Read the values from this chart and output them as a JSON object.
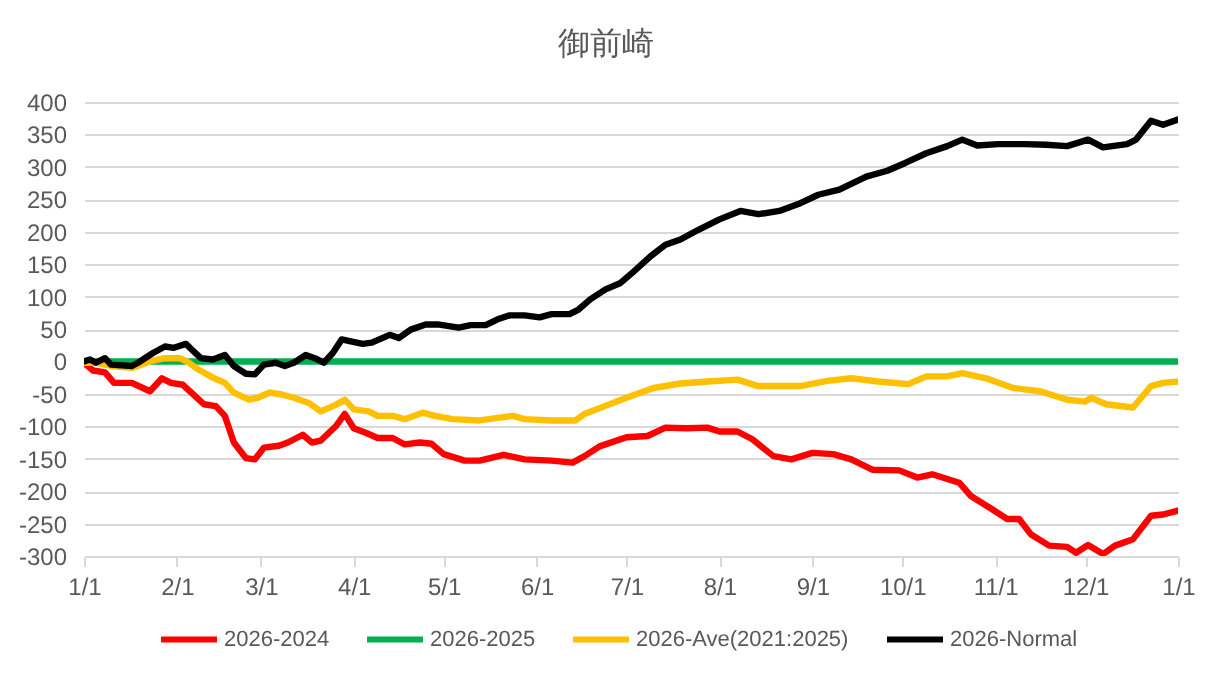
{
  "chart_data": {
    "type": "line",
    "title": "御前崎",
    "xlim": [
      "2026-01-01",
      "2027-01-01"
    ],
    "xticks": [
      {
        "value": "2026-01-01",
        "label": "1/1"
      },
      {
        "value": "2026-02-01",
        "label": "2/1"
      },
      {
        "value": "2026-03-01",
        "label": "3/1"
      },
      {
        "value": "2026-04-01",
        "label": "4/1"
      },
      {
        "value": "2026-05-01",
        "label": "5/1"
      },
      {
        "value": "2026-06-01",
        "label": "6/1"
      },
      {
        "value": "2026-07-01",
        "label": "7/1"
      },
      {
        "value": "2026-08-01",
        "label": "8/1"
      },
      {
        "value": "2026-09-01",
        "label": "9/1"
      },
      {
        "value": "2026-10-01",
        "label": "10/1"
      },
      {
        "value": "2026-11-01",
        "label": "11/1"
      },
      {
        "value": "2026-12-01",
        "label": "12/1"
      },
      {
        "value": "2027-01-01",
        "label": "1/1"
      }
    ],
    "ylim": [
      -300,
      400
    ],
    "yticks": [
      -300,
      -250,
      -200,
      -150,
      -100,
      -50,
      0,
      50,
      100,
      150,
      200,
      250,
      300,
      350,
      400
    ],
    "grid": "y",
    "legend": "bottom",
    "series": [
      {
        "name": "2026-2024",
        "color": "#ff0000",
        "x": [
          "2026-01-01",
          "2026-01-04",
          "2026-01-08",
          "2026-01-11",
          "2026-01-17",
          "2026-01-23",
          "2026-01-27",
          "2026-01-30",
          "2026-02-03",
          "2026-02-07",
          "2026-02-10",
          "2026-02-14",
          "2026-02-17",
          "2026-02-20",
          "2026-02-24",
          "2026-02-27",
          "2026-03-02",
          "2026-03-07",
          "2026-03-10",
          "2026-03-15",
          "2026-03-18",
          "2026-03-21",
          "2026-03-26",
          "2026-03-29",
          "2026-04-01",
          "2026-04-05",
          "2026-04-09",
          "2026-04-14",
          "2026-04-18",
          "2026-04-23",
          "2026-04-27",
          "2026-05-01",
          "2026-05-08",
          "2026-05-13",
          "2026-05-21",
          "2026-05-28",
          "2026-06-06",
          "2026-06-13",
          "2026-06-17",
          "2026-06-22",
          "2026-07-01",
          "2026-07-08",
          "2026-07-14",
          "2026-07-21",
          "2026-07-28",
          "2026-08-01",
          "2026-08-07",
          "2026-08-12",
          "2026-08-19",
          "2026-08-25",
          "2026-09-01",
          "2026-09-08",
          "2026-09-14",
          "2026-09-21",
          "2026-09-30",
          "2026-10-06",
          "2026-10-11",
          "2026-10-20",
          "2026-10-24",
          "2026-10-31",
          "2026-11-05",
          "2026-11-09",
          "2026-11-13",
          "2026-11-19",
          "2026-11-25",
          "2026-11-28",
          "2026-12-02",
          "2026-12-07",
          "2026-12-11",
          "2026-12-17",
          "2026-12-23",
          "2026-12-27",
          "2027-01-01"
        ],
        "values": [
          -2,
          -14,
          -17,
          -33,
          -33,
          -46,
          -26,
          -33,
          -36,
          -53,
          -66,
          -69,
          -84,
          -125,
          -149,
          -151,
          -133,
          -130,
          -125,
          -113,
          -125,
          -122,
          -100,
          -81,
          -103,
          -110,
          -118,
          -118,
          -128,
          -125,
          -127,
          -143,
          -153,
          -153,
          -144,
          -151,
          -153,
          -156,
          -146,
          -131,
          -117,
          -115,
          -102,
          -103,
          -102,
          -108,
          -108,
          -120,
          -146,
          -151,
          -141,
          -143,
          -151,
          -167,
          -168,
          -179,
          -174,
          -187,
          -208,
          -228,
          -243,
          -243,
          -267,
          -284,
          -286,
          -295,
          -283,
          -297,
          -284,
          -274,
          -238,
          -236,
          -230
        ]
      },
      {
        "name": "2026-2025",
        "color": "#00b050",
        "x": [
          "2026-01-01",
          "2026-02-01",
          "2026-03-01",
          "2026-04-01",
          "2026-05-01",
          "2026-06-01",
          "2026-07-01",
          "2026-08-01",
          "2026-09-01",
          "2026-10-01",
          "2026-11-01",
          "2026-12-01",
          "2027-01-01"
        ],
        "values": [
          0,
          0,
          0,
          0,
          0,
          0,
          0,
          0,
          0,
          0,
          0,
          0,
          0
        ]
      },
      {
        "name": "2026-Ave(2021:2025)",
        "color": "#ffc000",
        "x": [
          "2026-01-01",
          "2026-01-05",
          "2026-01-10",
          "2026-01-17",
          "2026-01-23",
          "2026-01-28",
          "2026-02-02",
          "2026-02-05",
          "2026-02-08",
          "2026-02-13",
          "2026-02-17",
          "2026-02-20",
          "2026-02-25",
          "2026-02-28",
          "2026-03-04",
          "2026-03-08",
          "2026-03-12",
          "2026-03-17",
          "2026-03-21",
          "2026-03-26",
          "2026-03-29",
          "2026-04-01",
          "2026-04-06",
          "2026-04-09",
          "2026-04-14",
          "2026-04-18",
          "2026-04-24",
          "2026-04-28",
          "2026-05-04",
          "2026-05-13",
          "2026-05-19",
          "2026-05-24",
          "2026-05-28",
          "2026-06-06",
          "2026-06-14",
          "2026-06-17",
          "2026-06-22",
          "2026-07-01",
          "2026-07-10",
          "2026-07-19",
          "2026-07-28",
          "2026-08-07",
          "2026-08-14",
          "2026-08-28",
          "2026-09-06",
          "2026-09-14",
          "2026-09-23",
          "2026-10-03",
          "2026-10-09",
          "2026-10-16",
          "2026-10-21",
          "2026-10-29",
          "2026-11-07",
          "2026-11-16",
          "2026-11-25",
          "2026-12-01",
          "2026-12-03",
          "2026-12-08",
          "2026-12-17",
          "2026-12-23",
          "2026-12-27",
          "2027-01-01"
        ],
        "values": [
          -2,
          -2,
          -7,
          -10,
          0,
          5,
          5,
          -2,
          -12,
          -25,
          -33,
          -48,
          -59,
          -56,
          -48,
          -51,
          -56,
          -64,
          -77,
          -67,
          -59,
          -74,
          -77,
          -84,
          -84,
          -89,
          -79,
          -84,
          -89,
          -91,
          -87,
          -84,
          -89,
          -91,
          -91,
          -81,
          -72,
          -56,
          -41,
          -34,
          -31,
          -28,
          -38,
          -38,
          -30,
          -26,
          -31,
          -35,
          -23,
          -23,
          -18,
          -26,
          -41,
          -46,
          -59,
          -62,
          -56,
          -66,
          -71,
          -38,
          -33,
          -31
        ]
      },
      {
        "name": "2026-Normal",
        "color": "#000000",
        "x": [
          "2026-01-01",
          "2026-01-03",
          "2026-01-05",
          "2026-01-08",
          "2026-01-10",
          "2026-01-17",
          "2026-01-19",
          "2026-01-24",
          "2026-01-28",
          "2026-01-31",
          "2026-02-04",
          "2026-02-06",
          "2026-02-09",
          "2026-02-13",
          "2026-02-17",
          "2026-02-20",
          "2026-02-24",
          "2026-02-27",
          "2026-03-02",
          "2026-03-06",
          "2026-03-09",
          "2026-03-12",
          "2026-03-16",
          "2026-03-19",
          "2026-03-22",
          "2026-03-25",
          "2026-03-28",
          "2026-03-31",
          "2026-04-04",
          "2026-04-07",
          "2026-04-13",
          "2026-04-16",
          "2026-04-20",
          "2026-04-25",
          "2026-04-29",
          "2026-05-06",
          "2026-05-10",
          "2026-05-15",
          "2026-05-19",
          "2026-05-23",
          "2026-05-28",
          "2026-06-02",
          "2026-06-06",
          "2026-06-12",
          "2026-06-15",
          "2026-06-19",
          "2026-06-24",
          "2026-06-29",
          "2026-07-03",
          "2026-07-09",
          "2026-07-14",
          "2026-07-19",
          "2026-07-25",
          "2026-08-01",
          "2026-08-08",
          "2026-08-14",
          "2026-08-21",
          "2026-08-28",
          "2026-09-03",
          "2026-09-10",
          "2026-09-19",
          "2026-09-26",
          "2026-10-02",
          "2026-10-09",
          "2026-10-16",
          "2026-10-21",
          "2026-10-26",
          "2026-11-02",
          "2026-11-11",
          "2026-11-18",
          "2026-11-25",
          "2026-12-02",
          "2026-12-07",
          "2026-12-15",
          "2026-12-18",
          "2026-12-23",
          "2026-12-27",
          "2027-01-01"
        ],
        "values": [
          0,
          3,
          -2,
          5,
          -5,
          -7,
          -2,
          13,
          23,
          21,
          27,
          18,
          5,
          3,
          10,
          -7,
          -19,
          -20,
          -5,
          -2,
          -7,
          -2,
          10,
          5,
          -2,
          13,
          34,
          31,
          27,
          29,
          41,
          36,
          49,
          57,
          57,
          52,
          56,
          56,
          65,
          71,
          71,
          68,
          73,
          73,
          80,
          96,
          111,
          121,
          137,
          162,
          180,
          188,
          203,
          219,
          232,
          227,
          232,
          244,
          257,
          265,
          285,
          294,
          306,
          321,
          332,
          342,
          333,
          335,
          335,
          334,
          332,
          342,
          330,
          335,
          342,
          371,
          365,
          373
        ]
      }
    ]
  }
}
